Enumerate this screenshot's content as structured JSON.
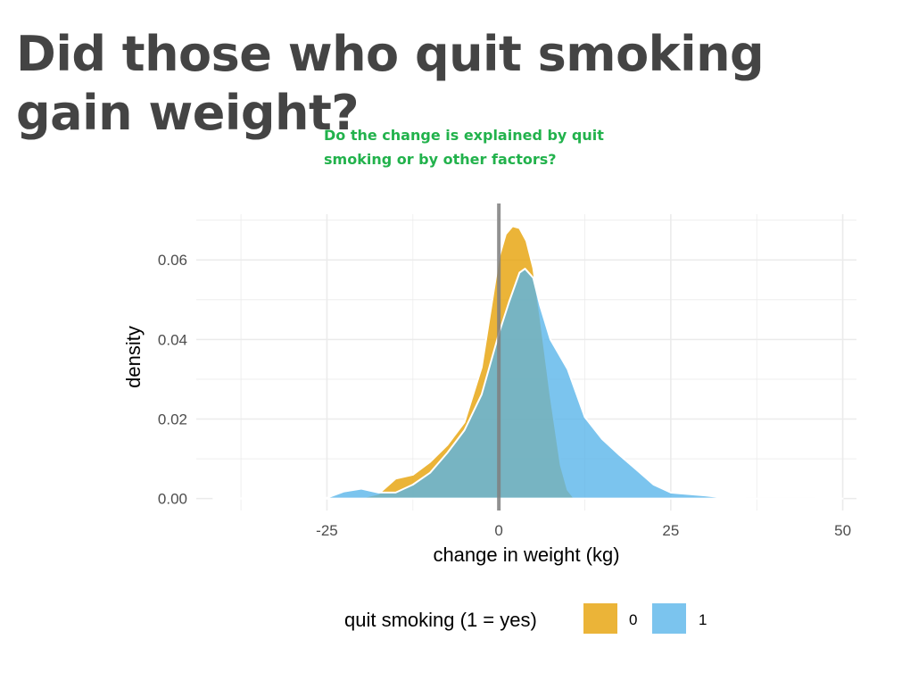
{
  "slide": {
    "title": "Did those who quit smoking gain weight?",
    "callout": "Do the change is explained by quit smoking or by other factors?",
    "callout_color": "#22b24c"
  },
  "chart_data": {
    "type": "area",
    "subtype": "density",
    "title": "",
    "xlabel": "change in weight (kg)",
    "ylabel": "density",
    "xlim": [
      -44,
      52
    ],
    "ylim": [
      -0.003,
      0.0715
    ],
    "x_ticks": [
      -25,
      0,
      25,
      50
    ],
    "x_tick_labels": [
      "-25",
      "0",
      "25",
      "50"
    ],
    "y_ticks": [
      0.0,
      0.02,
      0.04,
      0.06
    ],
    "y_tick_labels": [
      "0.00",
      "0.02",
      "0.04",
      "0.06"
    ],
    "grid": true,
    "vline_x": 0,
    "legend": {
      "title": "quit smoking (1 = yes)",
      "placement": "bottom"
    },
    "series": [
      {
        "name": "0",
        "color": "#E69F00",
        "points": [
          [
            -41.5,
            0
          ],
          [
            -35,
            0.0001
          ],
          [
            -32,
            0.0003
          ],
          [
            -30,
            0.0001
          ],
          [
            -25,
            0
          ],
          [
            -20,
            0.0002
          ],
          [
            -17.5,
            0.0012
          ],
          [
            -15,
            0.005
          ],
          [
            -12.5,
            0.006
          ],
          [
            -10,
            0.0092
          ],
          [
            -7.5,
            0.0135
          ],
          [
            -5,
            0.0192
          ],
          [
            -2.5,
            0.033
          ],
          [
            0,
            0.0605
          ],
          [
            1,
            0.0665
          ],
          [
            2,
            0.0685
          ],
          [
            3,
            0.068
          ],
          [
            4,
            0.0648
          ],
          [
            5,
            0.058
          ],
          [
            6,
            0.046
          ],
          [
            7.5,
            0.026
          ],
          [
            9,
            0.0085
          ],
          [
            10,
            0.0022
          ],
          [
            11,
            0
          ],
          [
            32,
            0
          ]
        ]
      },
      {
        "name": "1",
        "color": "#56B4E9",
        "points": [
          [
            -41.5,
            0
          ],
          [
            -28,
            0.0001
          ],
          [
            -25,
            0.0002
          ],
          [
            -22.5,
            0.0018
          ],
          [
            -20,
            0.0025
          ],
          [
            -17.5,
            0.0015
          ],
          [
            -15,
            0.0015
          ],
          [
            -12.5,
            0.0035
          ],
          [
            -10,
            0.0065
          ],
          [
            -7.5,
            0.0115
          ],
          [
            -5,
            0.0172
          ],
          [
            -2.5,
            0.0262
          ],
          [
            0,
            0.0415
          ],
          [
            1.5,
            0.0495
          ],
          [
            3,
            0.0568
          ],
          [
            3.8,
            0.0578
          ],
          [
            5,
            0.0555
          ],
          [
            6,
            0.0485
          ],
          [
            7.5,
            0.04
          ],
          [
            10,
            0.0325
          ],
          [
            12.5,
            0.0205
          ],
          [
            15,
            0.015
          ],
          [
            17.5,
            0.011
          ],
          [
            20,
            0.0073
          ],
          [
            22.5,
            0.0035
          ],
          [
            25,
            0.0015
          ],
          [
            30,
            0.0008
          ],
          [
            33,
            0.0002
          ],
          [
            36,
            0
          ],
          [
            46,
            0
          ],
          [
            48,
            0.0002
          ],
          [
            50,
            0
          ]
        ]
      }
    ]
  }
}
